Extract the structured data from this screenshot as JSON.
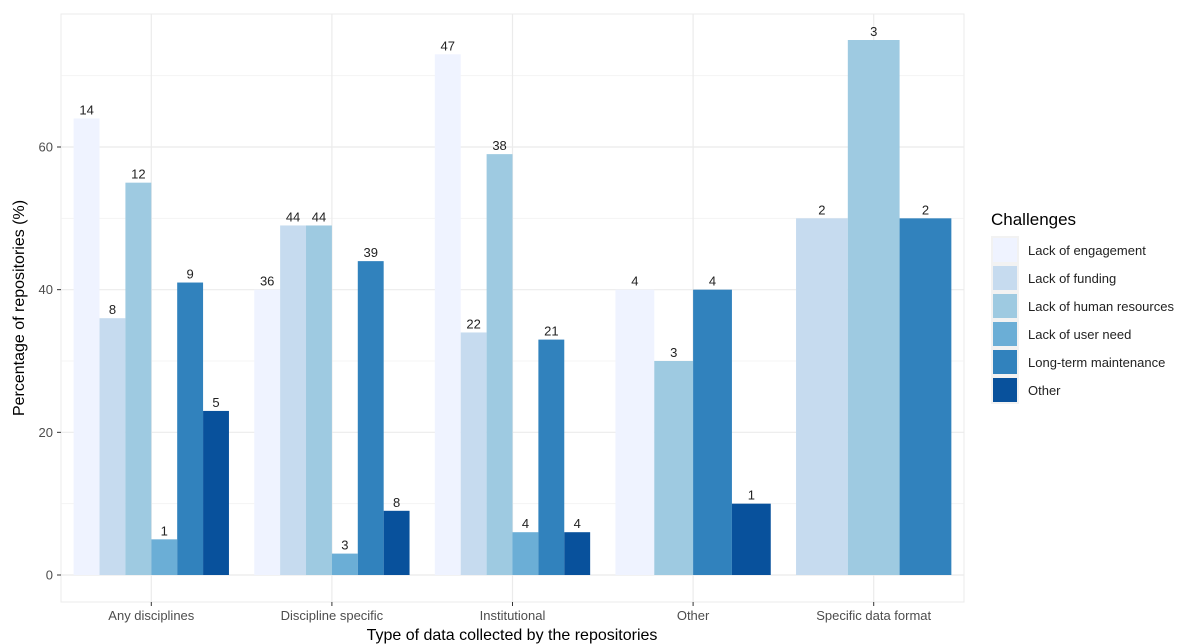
{
  "chart_data": {
    "type": "bar",
    "xlabel": "Type of data collected by the repositories",
    "ylabel": "Percentage of repositories (%)",
    "ylim": [
      0,
      78
    ],
    "yticks": [
      0,
      20,
      40,
      60
    ],
    "grid": true,
    "legend": {
      "title": "Challenges",
      "placement": "right"
    },
    "categories": [
      "Any disciplines",
      "Discipline specific",
      "Institutional",
      "Other",
      "Specific data format"
    ],
    "series": [
      {
        "name": "Lack of engagement",
        "color": "#eff3ff",
        "values": [
          64,
          40,
          73,
          40,
          null
        ],
        "labels": [
          "14",
          "36",
          "47",
          "4",
          ""
        ]
      },
      {
        "name": "Lack of funding",
        "color": "#c6dbef",
        "values": [
          36,
          49,
          34,
          null,
          50
        ],
        "labels": [
          "8",
          "44",
          "22",
          "",
          "2"
        ]
      },
      {
        "name": "Lack of human resources",
        "color": "#9ecae1",
        "values": [
          55,
          49,
          59,
          30,
          75
        ],
        "labels": [
          "12",
          "44",
          "38",
          "3",
          "3"
        ]
      },
      {
        "name": "Lack of user need",
        "color": "#6baed6",
        "values": [
          5,
          3,
          6,
          null,
          null
        ],
        "labels": [
          "1",
          "3",
          "4",
          "",
          ""
        ]
      },
      {
        "name": "Long-term maintenance",
        "color": "#3182bd",
        "values": [
          41,
          44,
          33,
          40,
          50
        ],
        "labels": [
          "9",
          "39",
          "21",
          "4",
          "2"
        ]
      },
      {
        "name": "Other",
        "color": "#08519c",
        "values": [
          23,
          9,
          6,
          10,
          null
        ],
        "labels": [
          "5",
          "8",
          "4",
          "1",
          ""
        ]
      }
    ]
  }
}
